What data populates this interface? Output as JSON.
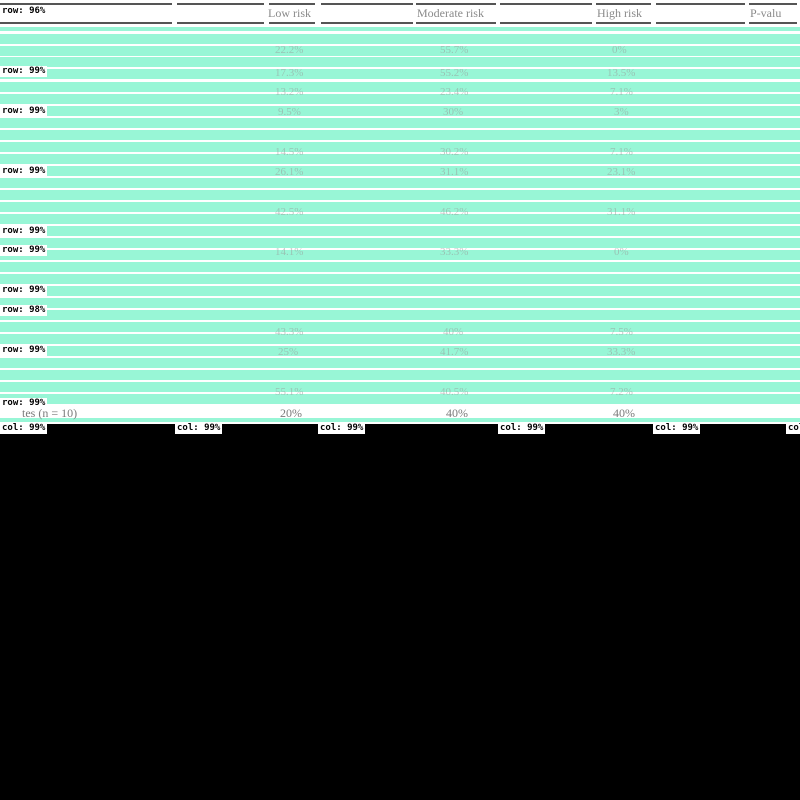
{
  "header": {
    "columns": [
      "Low risk",
      "Moderate risk",
      "High risk",
      "P-valu"
    ]
  },
  "overlay": {
    "row_tags": [
      "row: 96%",
      "row: 99%",
      "row: 99%",
      "row: 99%",
      "row: 99%",
      "row: 99%",
      "row: 99%",
      "row: 98%",
      "row: 99%",
      "row: 99%"
    ],
    "col_tags": [
      "col: 99%",
      "col: 99%",
      "col: 99%",
      "col: 99%",
      "col: 99%",
      "col:"
    ],
    "band_color": "#8ff5d2"
  },
  "faint_values": {
    "row_1": [
      "22.2%",
      "55.7%",
      "0%"
    ],
    "row_2": [
      "17.3%",
      "55.2%",
      "13.5%"
    ],
    "row_3": [
      "13.2%",
      "23.4%",
      "7.1%"
    ],
    "row_4": [
      "9.5%",
      "30%",
      "3%"
    ],
    "row_5": [
      "14.5%",
      "30.2%",
      "7.1%"
    ],
    "row_6": [
      "26.1%",
      "31.1%",
      "23.1%"
    ],
    "row_7": [
      "42.5%",
      "46.2%",
      "31.1%"
    ],
    "row_8": [
      "14.1%",
      "33.3%",
      "0%"
    ],
    "row_9": [
      "43.3%",
      "40%",
      "7.5%"
    ],
    "row_10": [
      "25%",
      "41.7%",
      "33.3%"
    ],
    "row_11": [
      "55.1%",
      "40.5%",
      "7.2%"
    ]
  },
  "bottom_row": {
    "label": "tes (n = 10)",
    "values": [
      "20%",
      "40%",
      "40%"
    ]
  }
}
